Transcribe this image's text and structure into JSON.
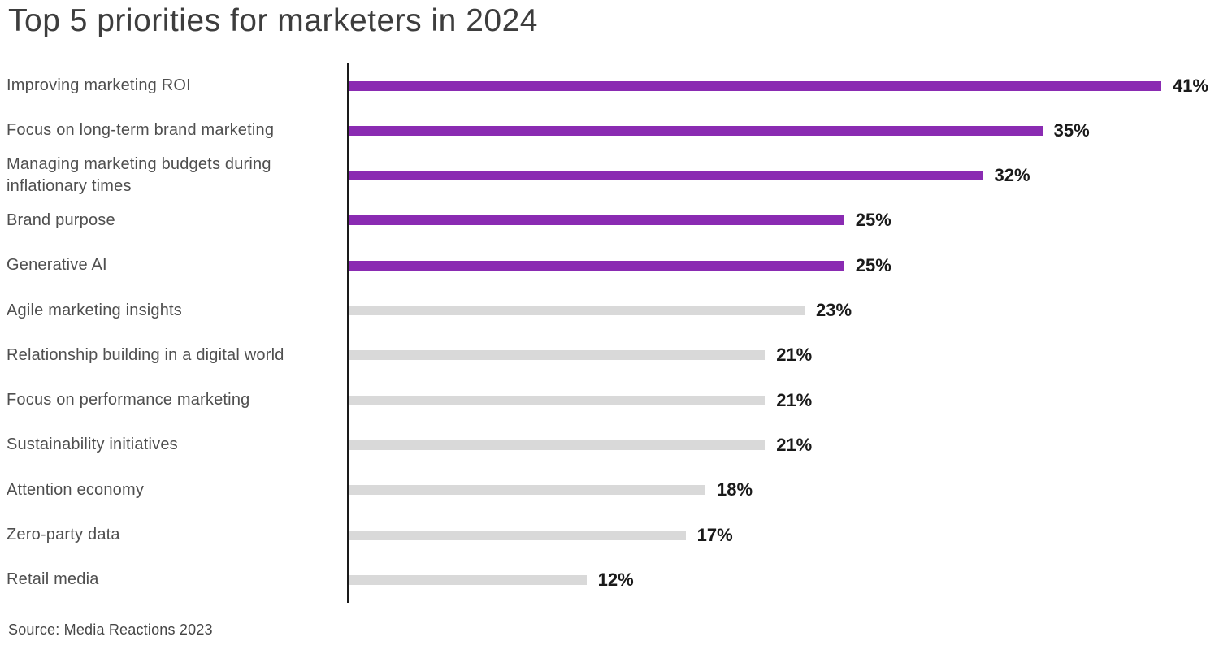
{
  "title": "Top 5 priorities for marketers in 2024",
  "source": "Source: Media Reactions 2023",
  "colors": {
    "highlight_bar": "#8A2BB2",
    "muted_bar": "#D9D9D9",
    "axis": "#1A1A1A",
    "title_text": "#3D3D3D",
    "label_text": "#4F4F4F",
    "value_text": "#1A1A1A"
  },
  "chart_data": {
    "type": "bar",
    "orientation": "horizontal",
    "title": "Top 5 priorities for marketers in 2024",
    "xlabel": "",
    "ylabel": "",
    "xlim": [
      0,
      41
    ],
    "grid": false,
    "legend": false,
    "value_suffix": "%",
    "categories": [
      "Improving marketing ROI",
      "Focus on long-term brand marketing",
      "Managing marketing budgets during inflationary times",
      "Brand purpose",
      "Generative AI",
      "Agile marketing insights",
      "Relationship building in a digital world",
      "Focus on performance marketing",
      "Sustainability initiatives",
      "Attention economy",
      "Zero-party data",
      "Retail media"
    ],
    "values": [
      41,
      35,
      32,
      25,
      25,
      23,
      21,
      21,
      21,
      18,
      17,
      12
    ],
    "highlighted": [
      true,
      true,
      true,
      true,
      true,
      false,
      false,
      false,
      false,
      false,
      false,
      false
    ],
    "annotation": "Top 5 bars highlighted in purple, remaining bars in gray"
  }
}
